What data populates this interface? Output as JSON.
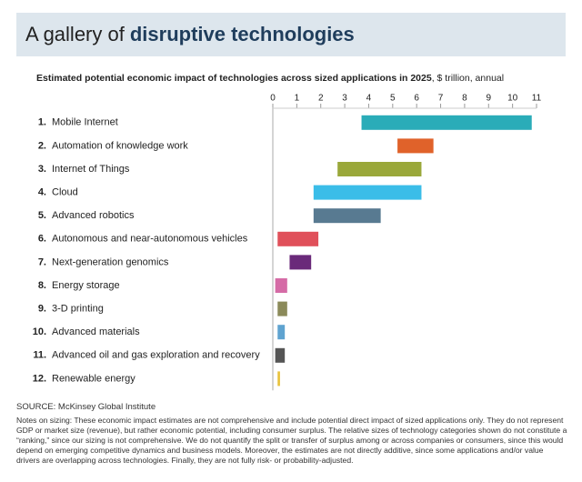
{
  "header": {
    "title": "A gallery of",
    "title_emphasis": "disruptive technologies"
  },
  "chart_data": {
    "type": "range_bar",
    "title": "Estimated potential economic impact of technologies across sized applications in 2025",
    "subtitle": ", $ trillion, annual",
    "ranks": [
      "1.",
      "2.",
      "3.",
      "4.",
      "5.",
      "6.",
      "7.",
      "8.",
      "9.",
      "10.",
      "11.",
      "12."
    ],
    "categories": [
      "Mobile Internet",
      "Automation of knowledge work",
      "Internet of Things",
      "Cloud",
      "Advanced robotics",
      "Autonomous and near-autonomous vehicles",
      "Next-generation genomics",
      "Energy storage",
      "3-D printing",
      "Advanced materials",
      "Advanced oil and gas exploration and recovery",
      "Renewable energy"
    ],
    "low": [
      3.7,
      5.2,
      2.7,
      1.7,
      1.7,
      0.2,
      0.7,
      0.1,
      0.2,
      0.2,
      0.1,
      0.2
    ],
    "high": [
      10.8,
      6.7,
      6.2,
      6.2,
      4.5,
      1.9,
      1.6,
      0.6,
      0.6,
      0.5,
      0.5,
      0.3
    ],
    "colors": [
      "#2aacb8",
      "#e0622a",
      "#9aa83a",
      "#3bbde8",
      "#587a91",
      "#e0505a",
      "#6a2a7a",
      "#d56ba6",
      "#8b8a5a",
      "#5fa3d0",
      "#555555",
      "#e8c23a"
    ],
    "xlim": [
      0,
      11
    ],
    "xticks": [
      0,
      1,
      2,
      3,
      4,
      5,
      6,
      7,
      8,
      9,
      10,
      11
    ]
  },
  "footer": {
    "source": "SOURCE: McKinsey Global Institute",
    "notes": "Notes on sizing: These economic impact estimates are not comprehensive and include potential direct impact of sized applications only. They do not represent GDP or market size (revenue), but rather economic potential, including consumer surplus. The relative sizes of technology categories shown do not constitute a “ranking,” since our sizing is not comprehensive. We do not quantify the split or transfer of surplus among or across companies or consumers, since this would depend on emerging competitive dynamics and business models. Moreover, the estimates are not directly additive, since some applications and/or value drivers are overlapping across technologies. Finally, they are not fully risk- or probability-adjusted."
  }
}
